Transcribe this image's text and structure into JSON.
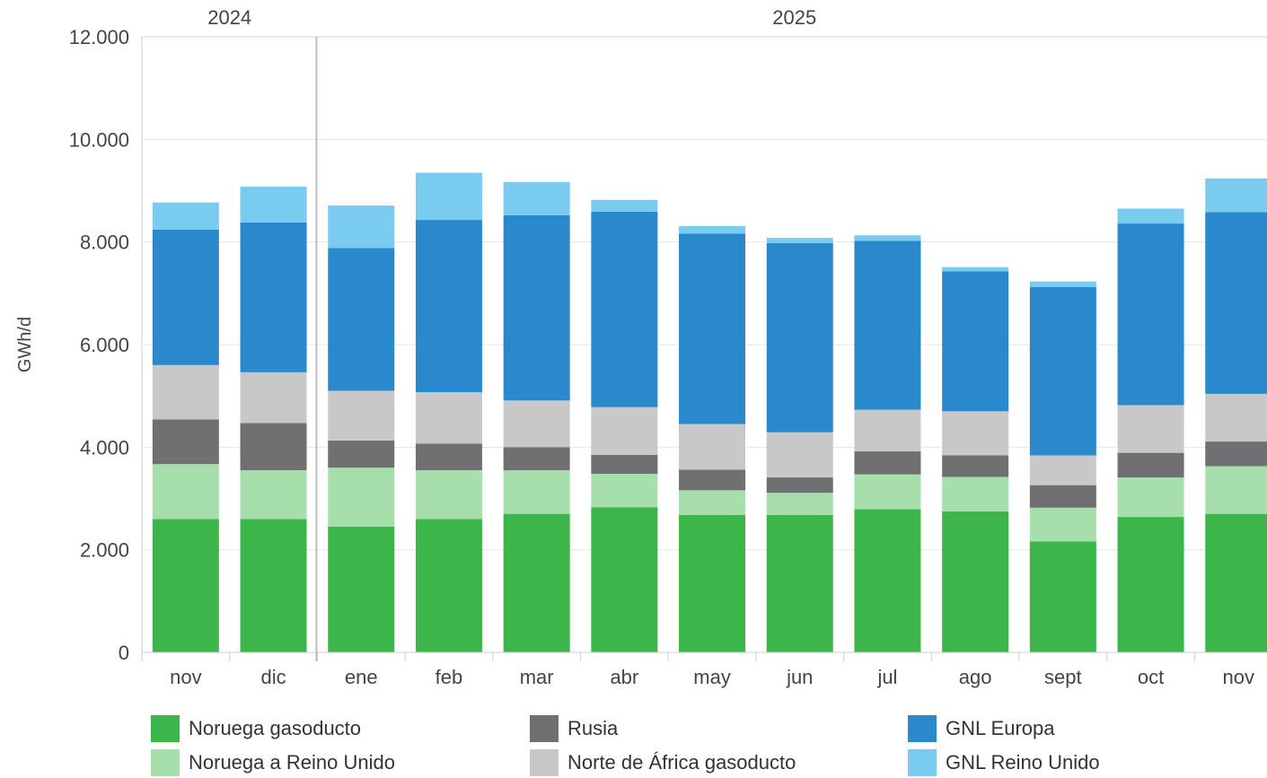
{
  "chart_data": {
    "type": "bar",
    "stacked": true,
    "title": "",
    "xlabel": "",
    "ylabel": "GWh/d",
    "ylim": [
      0,
      12000
    ],
    "yticks": [
      0,
      2000,
      4000,
      6000,
      8000,
      10000,
      12000
    ],
    "ytick_labels": [
      "0",
      "2.000",
      "4.000",
      "6.000",
      "8.000",
      "10.000",
      "12.000"
    ],
    "year_groups": [
      {
        "label": "2024",
        "categories": [
          "nov",
          "dic"
        ]
      },
      {
        "label": "2025",
        "categories": [
          "ene",
          "feb",
          "mar",
          "abr",
          "may",
          "jun",
          "jul",
          "ago",
          "sept",
          "oct",
          "nov"
        ]
      }
    ],
    "categories": [
      "nov",
      "dic",
      "ene",
      "feb",
      "mar",
      "abr",
      "may",
      "jun",
      "jul",
      "ago",
      "sept",
      "oct",
      "nov"
    ],
    "grid": true,
    "legend_position": "bottom",
    "series": [
      {
        "name": "Noruega gasoducto",
        "color": "#3cb54a",
        "values": [
          2600,
          2600,
          2450,
          2600,
          2700,
          2830,
          2680,
          2680,
          2790,
          2750,
          2160,
          2640,
          2700
        ]
      },
      {
        "name": "Noruega a Reino Unido",
        "color": "#a6dfab",
        "values": [
          1070,
          950,
          1150,
          950,
          850,
          650,
          480,
          430,
          680,
          670,
          660,
          770,
          930
        ]
      },
      {
        "name": "Rusia",
        "color": "#707072",
        "values": [
          870,
          920,
          530,
          520,
          450,
          370,
          400,
          300,
          450,
          420,
          440,
          480,
          480
        ]
      },
      {
        "name": "Norte de África gasoducto",
        "color": "#c8c8c8",
        "values": [
          1060,
          990,
          970,
          1000,
          910,
          930,
          890,
          880,
          810,
          860,
          580,
          930,
          930
        ]
      },
      {
        "name": "GNL Europa",
        "color": "#2a89cd",
        "values": [
          2640,
          2920,
          2780,
          3360,
          3610,
          3810,
          3710,
          3690,
          3290,
          2730,
          3280,
          3540,
          3540
        ]
      },
      {
        "name": "GNL Reino Unido",
        "color": "#79cbf0",
        "values": [
          530,
          700,
          830,
          920,
          650,
          230,
          150,
          100,
          110,
          80,
          110,
          290,
          660
        ]
      }
    ]
  }
}
